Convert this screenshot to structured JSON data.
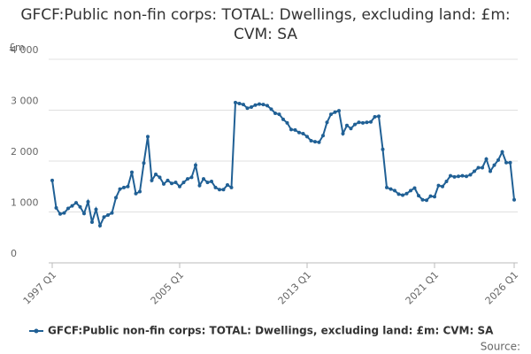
{
  "chart_data": {
    "type": "line",
    "title": "GFCF:Public non-fin corps: TOTAL: Dwellings, excluding land: £m: CVM: SA",
    "y_label": "£m",
    "source": "Source:",
    "categories": [
      "1997 Q1",
      null,
      null,
      null,
      null,
      null,
      null,
      null,
      null,
      null,
      null,
      null,
      null,
      null,
      null,
      null,
      null,
      null,
      null,
      null,
      null,
      null,
      null,
      null,
      null,
      null,
      null,
      null,
      null,
      null,
      null,
      null,
      "2005 Q1",
      null,
      null,
      null,
      null,
      null,
      null,
      null,
      null,
      null,
      null,
      null,
      null,
      null,
      null,
      null,
      null,
      null,
      null,
      null,
      null,
      null,
      null,
      null,
      null,
      null,
      null,
      null,
      null,
      null,
      null,
      null,
      "2013 Q1",
      null,
      null,
      null,
      null,
      null,
      null,
      null,
      null,
      null,
      null,
      null,
      null,
      null,
      null,
      null,
      null,
      null,
      null,
      null,
      null,
      null,
      null,
      null,
      null,
      null,
      null,
      null,
      null,
      null,
      null,
      null,
      "2021 Q1",
      null,
      null,
      null,
      null,
      null,
      null,
      null,
      null,
      null,
      null,
      null,
      null,
      null,
      null,
      null,
      null,
      null,
      null,
      null,
      "2026 Q1"
    ],
    "series": [
      {
        "name": "GFCF:Public non-fin corps: TOTAL: Dwellings, excluding land: £m: CVM: SA",
        "color": "#206095",
        "values": [
          1620,
          1080,
          960,
          980,
          1070,
          1120,
          1180,
          1100,
          970,
          1200,
          800,
          1050,
          730,
          900,
          940,
          980,
          1280,
          1450,
          1480,
          1500,
          1780,
          1360,
          1400,
          1960,
          2480,
          1620,
          1740,
          1680,
          1550,
          1620,
          1560,
          1580,
          1500,
          1580,
          1650,
          1680,
          1920,
          1520,
          1650,
          1580,
          1600,
          1480,
          1440,
          1440,
          1530,
          1480,
          3150,
          3130,
          3110,
          3040,
          3060,
          3100,
          3120,
          3110,
          3090,
          3020,
          2940,
          2920,
          2820,
          2750,
          2620,
          2610,
          2560,
          2540,
          2480,
          2400,
          2380,
          2370,
          2500,
          2760,
          2920,
          2960,
          2990,
          2540,
          2700,
          2640,
          2720,
          2760,
          2750,
          2760,
          2770,
          2870,
          2880,
          2230,
          1480,
          1450,
          1420,
          1350,
          1330,
          1360,
          1420,
          1470,
          1320,
          1240,
          1230,
          1310,
          1300,
          1520,
          1500,
          1600,
          1710,
          1690,
          1700,
          1710,
          1700,
          1730,
          1800,
          1870,
          1870,
          2040,
          1800,
          1920,
          2020,
          2180,
          1970,
          1970,
          1240
        ]
      }
    ],
    "ylim": [
      0,
      4000
    ],
    "yticks": [
      0,
      {
        "value": 1000,
        "label": "1 000"
      },
      {
        "value": 2000,
        "label": "2 000"
      },
      {
        "value": 3000,
        "label": "3 000"
      },
      {
        "value": 4000,
        "label": "4 000"
      }
    ],
    "grid": true
  }
}
